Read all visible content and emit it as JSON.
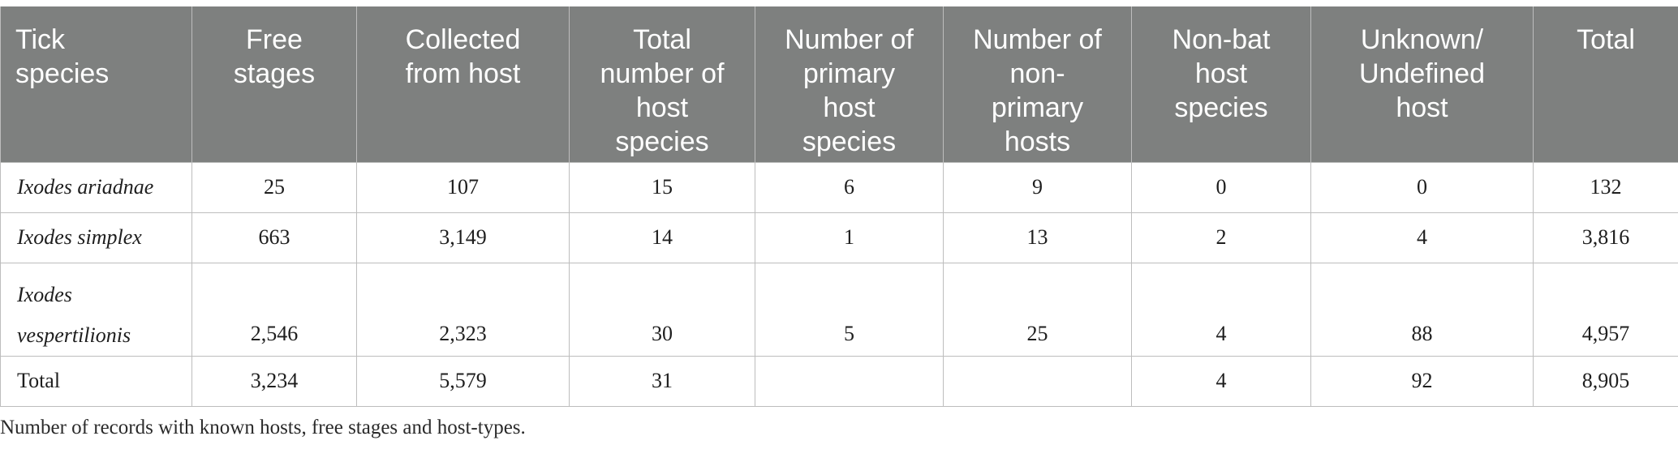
{
  "table": {
    "headers": [
      "Tick\nspecies",
      "Free\nstages",
      "Collected\nfrom host",
      "Total\nnumber of\nhost\nspecies",
      "Number of\nprimary\nhost\nspecies",
      "Number of\nnon-\nprimary\nhosts",
      "Non-bat\nhost\nspecies",
      "Unknown/\nUndefined\nhost",
      "Total"
    ],
    "rows": [
      {
        "species": "Ixodes ariadnae",
        "cells": [
          "25",
          "107",
          "15",
          "6",
          "9",
          "0",
          "0",
          "132"
        ]
      },
      {
        "species": "Ixodes simplex",
        "cells": [
          "663",
          "3,149",
          "14",
          "1",
          "13",
          "2",
          "4",
          "3,816"
        ]
      },
      {
        "species": "Ixodes\nvespertilionis",
        "cells": [
          "2,546",
          "2,323",
          "30",
          "5",
          "25",
          "4",
          "88",
          "4,957"
        ]
      },
      {
        "species": "Total",
        "cells": [
          "3,234",
          "5,579",
          "31",
          "",
          "",
          "4",
          "92",
          "8,905"
        ]
      }
    ]
  },
  "caption": "Number of records with known hosts, free stages and host-types.",
  "colors": {
    "header_background": "#7e807f",
    "header_text": "#ffffff",
    "grid_line": "#bdbdbd"
  }
}
